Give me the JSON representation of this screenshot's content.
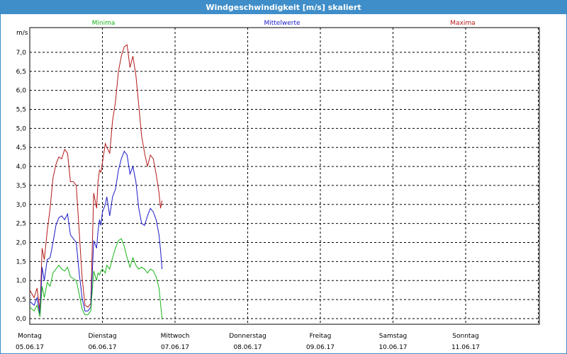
{
  "window": {
    "title": "Windgeschwindigkeit [m/s] skaliert"
  },
  "colors": {
    "min": "#18b418",
    "mean": "#1a1ac8",
    "max": "#b41818",
    "grid": "#000000",
    "titlebar": "#3f8ec9"
  },
  "chart_data": {
    "type": "line",
    "title": "Windgeschwindigkeit [m/s] skaliert",
    "ylabel": "m/s",
    "ylim": [
      -0.15,
      7.65
    ],
    "yticks": [
      "0,0",
      "0,5",
      "1,0",
      "1,5",
      "2,0",
      "2,5",
      "3,0",
      "3,5",
      "4,0",
      "4,5",
      "5,0",
      "5,5",
      "6,0",
      "6,5",
      "7,0"
    ],
    "ytick_values": [
      0,
      0.5,
      1,
      1.5,
      2,
      2.5,
      3,
      3.5,
      4,
      4.5,
      5,
      5.5,
      6,
      6.5,
      7
    ],
    "xlim": [
      0,
      7
    ],
    "days": [
      {
        "name": "Montag",
        "date": "05.06.17"
      },
      {
        "name": "Dienstag",
        "date": "06.06.17"
      },
      {
        "name": "Mittwoch",
        "date": "07.06.17"
      },
      {
        "name": "Donnerstag",
        "date": "08.06.17"
      },
      {
        "name": "Freitag",
        "date": "09.06.17"
      },
      {
        "name": "Samstag",
        "date": "10.06.17"
      },
      {
        "name": "Sonntag",
        "date": "11.06.17"
      }
    ],
    "grid": true,
    "series": [
      {
        "name": "Maxima",
        "key": "max",
        "x": [
          0,
          0.06,
          0.1,
          0.14,
          0.17,
          0.2,
          0.24,
          0.28,
          0.32,
          0.36,
          0.4,
          0.44,
          0.48,
          0.52,
          0.56,
          0.6,
          0.64,
          0.68,
          0.72,
          0.76,
          0.8,
          0.84,
          0.88,
          0.92,
          0.94,
          0.96,
          0.98,
          1.0,
          1.04,
          1.06,
          1.1,
          1.14,
          1.18,
          1.22,
          1.26,
          1.3,
          1.34,
          1.38,
          1.42,
          1.46,
          1.5,
          1.54,
          1.58,
          1.62,
          1.66,
          1.7,
          1.74,
          1.78,
          1.8,
          1.82
        ],
        "y": [
          0.75,
          0.55,
          0.8,
          0.2,
          1.85,
          1.55,
          2.3,
          2.9,
          3.7,
          4.05,
          4.25,
          4.2,
          4.45,
          4.35,
          3.6,
          3.6,
          3.5,
          2.3,
          1.1,
          0.35,
          0.3,
          0.4,
          3.3,
          2.9,
          3.6,
          3.9,
          3.85,
          4.1,
          4.6,
          4.5,
          4.35,
          5.2,
          5.7,
          6.5,
          6.9,
          7.15,
          7.2,
          6.6,
          6.9,
          6.4,
          5.6,
          4.8,
          4.35,
          4.0,
          4.3,
          4.2,
          3.8,
          3.3,
          2.9,
          3.1
        ]
      },
      {
        "name": "Mittelwerte",
        "key": "mean",
        "x": [
          0,
          0.06,
          0.1,
          0.14,
          0.17,
          0.2,
          0.24,
          0.28,
          0.32,
          0.36,
          0.4,
          0.44,
          0.48,
          0.52,
          0.56,
          0.6,
          0.64,
          0.68,
          0.72,
          0.76,
          0.8,
          0.84,
          0.88,
          0.92,
          0.94,
          0.96,
          0.98,
          1.0,
          1.04,
          1.06,
          1.1,
          1.14,
          1.18,
          1.22,
          1.26,
          1.3,
          1.34,
          1.38,
          1.42,
          1.46,
          1.5,
          1.54,
          1.58,
          1.62,
          1.66,
          1.7,
          1.74,
          1.78,
          1.8,
          1.82
        ],
        "y": [
          0.45,
          0.35,
          0.55,
          0.1,
          1.35,
          1.0,
          1.55,
          1.6,
          2.0,
          2.45,
          2.65,
          2.7,
          2.6,
          2.75,
          2.2,
          2.1,
          2.0,
          1.2,
          0.55,
          0.2,
          0.2,
          0.3,
          2.05,
          1.85,
          2.3,
          2.6,
          2.45,
          2.8,
          3.0,
          3.2,
          2.7,
          3.2,
          3.4,
          3.9,
          4.2,
          4.4,
          4.3,
          3.8,
          4.0,
          3.6,
          2.9,
          2.5,
          2.45,
          2.7,
          2.9,
          2.8,
          2.6,
          2.2,
          1.8,
          1.3
        ]
      },
      {
        "name": "Minima",
        "key": "min",
        "x": [
          0,
          0.06,
          0.1,
          0.14,
          0.17,
          0.2,
          0.24,
          0.28,
          0.32,
          0.36,
          0.4,
          0.44,
          0.48,
          0.52,
          0.56,
          0.6,
          0.64,
          0.68,
          0.72,
          0.76,
          0.8,
          0.84,
          0.88,
          0.92,
          0.94,
          0.96,
          0.98,
          1.0,
          1.04,
          1.06,
          1.1,
          1.14,
          1.18,
          1.22,
          1.26,
          1.3,
          1.34,
          1.38,
          1.42,
          1.46,
          1.5,
          1.54,
          1.58,
          1.62,
          1.66,
          1.7,
          1.74,
          1.78,
          1.8,
          1.82
        ],
        "y": [
          0.3,
          0.2,
          0.35,
          0.05,
          0.85,
          0.55,
          0.95,
          0.85,
          1.2,
          1.3,
          1.4,
          1.3,
          1.25,
          1.35,
          1.1,
          1.05,
          1.0,
          0.65,
          0.25,
          0.1,
          0.1,
          0.2,
          1.25,
          1.0,
          1.2,
          1.15,
          1.25,
          1.3,
          1.2,
          1.4,
          1.3,
          1.6,
          1.85,
          2.05,
          2.1,
          1.9,
          1.6,
          1.35,
          1.6,
          1.4,
          1.3,
          1.35,
          1.3,
          1.2,
          1.3,
          1.25,
          1.1,
          0.8,
          0.4,
          0.0
        ]
      }
    ]
  }
}
